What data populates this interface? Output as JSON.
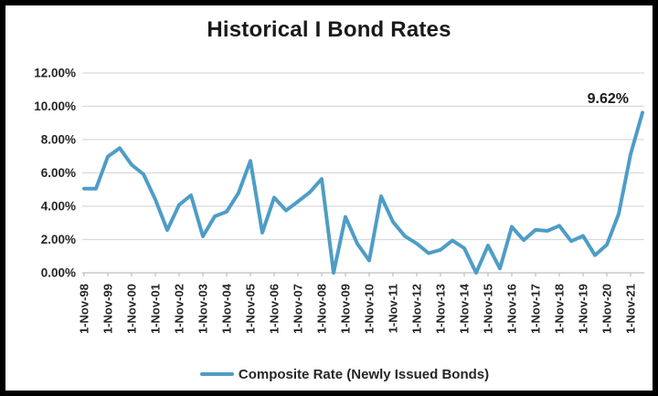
{
  "chart_data": {
    "type": "line",
    "title": "Historical I Bond Rates",
    "x": [
      "1-Nov-98",
      "1-May-99",
      "1-Nov-99",
      "1-May-00",
      "1-Nov-00",
      "1-May-01",
      "1-Nov-01",
      "1-May-02",
      "1-Nov-02",
      "1-May-03",
      "1-Nov-03",
      "1-May-04",
      "1-Nov-04",
      "1-May-05",
      "1-Nov-05",
      "1-May-06",
      "1-Nov-06",
      "1-May-07",
      "1-Nov-07",
      "1-May-08",
      "1-Nov-08",
      "1-May-09",
      "1-Nov-09",
      "1-May-10",
      "1-Nov-10",
      "1-May-11",
      "1-Nov-11",
      "1-May-12",
      "1-Nov-12",
      "1-May-13",
      "1-Nov-13",
      "1-May-14",
      "1-Nov-14",
      "1-May-15",
      "1-Nov-15",
      "1-May-16",
      "1-Nov-16",
      "1-May-17",
      "1-Nov-17",
      "1-May-18",
      "1-Nov-18",
      "1-May-19",
      "1-Nov-19",
      "1-May-20",
      "1-Nov-20",
      "1-May-21",
      "1-Nov-21",
      "1-May-22"
    ],
    "series": [
      {
        "name": "Composite Rate (Newly Issued Bonds)",
        "color": "#4E9DC6",
        "values": [
          5.05,
          5.05,
          6.98,
          7.49,
          6.49,
          5.92,
          4.4,
          2.57,
          4.08,
          4.66,
          2.19,
          3.39,
          3.67,
          4.8,
          6.73,
          2.41,
          4.52,
          3.74,
          4.28,
          4.84,
          5.64,
          0.0,
          3.36,
          1.74,
          0.74,
          4.6,
          3.06,
          2.2,
          1.76,
          1.18,
          1.38,
          1.94,
          1.48,
          0.0,
          1.64,
          0.26,
          2.76,
          1.96,
          2.58,
          2.52,
          2.83,
          1.9,
          2.22,
          1.06,
          1.68,
          3.54,
          7.12,
          9.62
        ]
      }
    ],
    "ylim": [
      0,
      12
    ],
    "y_ticks": [
      {
        "value": 12,
        "label": "12.00%"
      },
      {
        "value": 10,
        "label": "10.00%"
      },
      {
        "value": 8,
        "label": "8.00%"
      },
      {
        "value": 6,
        "label": "6.00%"
      },
      {
        "value": 4,
        "label": "4.00%"
      },
      {
        "value": 2,
        "label": "2.00%"
      },
      {
        "value": 0,
        "label": "0.00%"
      }
    ],
    "x_label_every": 2,
    "grid": true,
    "legend_position": "bottom",
    "annotation": {
      "text": "9.62%",
      "index": 47,
      "value": 9.62
    }
  },
  "colors": {
    "line": "#4E9DC6",
    "gridline": "#DADADA",
    "axis": "#BFBFBF",
    "text": "#262626",
    "title": "#1A1A1A",
    "background": "#FFFFFF",
    "border": "#000000"
  }
}
